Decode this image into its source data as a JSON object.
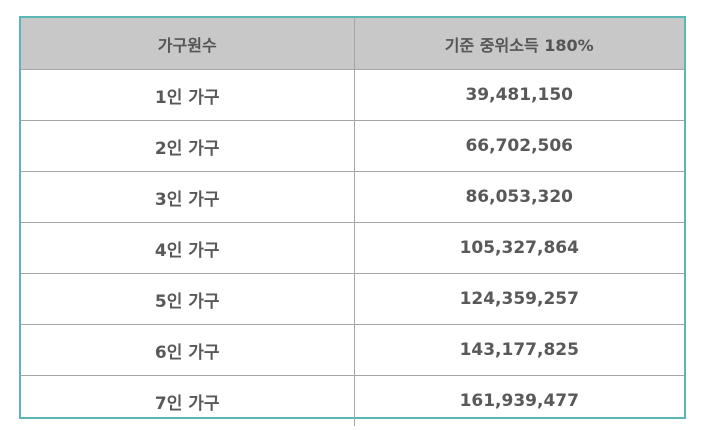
{
  "table": {
    "headers": [
      "가구원수",
      "기준 중위소득 180%"
    ],
    "rows": [
      {
        "household": "1인 가구",
        "income": "39,481,150"
      },
      {
        "household": "2인 가구",
        "income": "66,702,506"
      },
      {
        "household": "3인 가구",
        "income": "86,053,320"
      },
      {
        "household": "4인 가구",
        "income": "105,327,864"
      },
      {
        "household": "5인 가구",
        "income": "124,359,257"
      },
      {
        "household": "6인 가구",
        "income": "143,177,825"
      },
      {
        "household": "7인 가구",
        "income": "161,939,477"
      }
    ]
  },
  "colors": {
    "border_accent": "#5bb7b5",
    "header_bg": "#c8c8c8",
    "text": "#595959"
  }
}
